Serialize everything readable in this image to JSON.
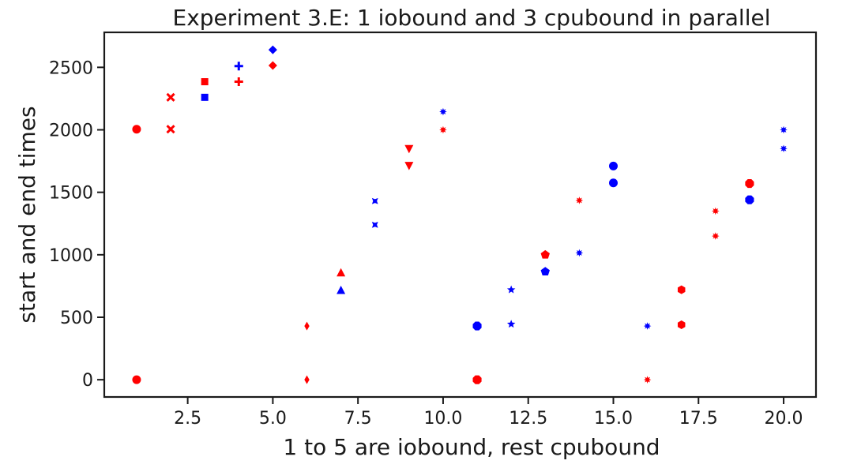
{
  "chart_data": {
    "type": "scatter",
    "title": "Experiment 3.E: 1 iobound and 3 cpubound in parallel",
    "xlabel": "1 to 5 are iobound, rest cpubound",
    "ylabel": "start and end times",
    "xlim": [
      0.05,
      20.95
    ],
    "ylim": [
      -138,
      2780
    ],
    "xticks": [
      2.5,
      5.0,
      7.5,
      10.0,
      12.5,
      15.0,
      17.5,
      20.0
    ],
    "xtick_labels": [
      "2.5",
      "5.0",
      "7.5",
      "10.0",
      "12.5",
      "15.0",
      "17.5",
      "20.0"
    ],
    "yticks": [
      0,
      500,
      1000,
      1500,
      2000,
      2500
    ],
    "ytick_labels": [
      "0",
      "500",
      "1000",
      "1500",
      "2000",
      "2500"
    ],
    "grid": false,
    "colors": {
      "red": "#ff0000",
      "blue": "#0000ff",
      "axis": "#1a1a1a"
    },
    "points": [
      {
        "x": 1,
        "y": 2005,
        "color": "red",
        "marker": "circle"
      },
      {
        "x": 1,
        "y": 0,
        "color": "red",
        "marker": "circle"
      },
      {
        "x": 2,
        "y": 2260,
        "color": "red",
        "marker": "x"
      },
      {
        "x": 2,
        "y": 2005,
        "color": "red",
        "marker": "x"
      },
      {
        "x": 3,
        "y": 2385,
        "color": "red",
        "marker": "square"
      },
      {
        "x": 3,
        "y": 2260,
        "color": "blue",
        "marker": "square"
      },
      {
        "x": 4,
        "y": 2510,
        "color": "blue",
        "marker": "plus"
      },
      {
        "x": 4,
        "y": 2385,
        "color": "red",
        "marker": "plus"
      },
      {
        "x": 5,
        "y": 2640,
        "color": "blue",
        "marker": "diamond"
      },
      {
        "x": 5,
        "y": 2515,
        "color": "red",
        "marker": "diamond"
      },
      {
        "x": 6,
        "y": 430,
        "color": "red",
        "marker": "thin-diamond"
      },
      {
        "x": 6,
        "y": 0,
        "color": "red",
        "marker": "thin-diamond"
      },
      {
        "x": 7,
        "y": 855,
        "color": "red",
        "marker": "triangle-up"
      },
      {
        "x": 7,
        "y": 715,
        "color": "blue",
        "marker": "triangle-up"
      },
      {
        "x": 8,
        "y": 1430,
        "color": "blue",
        "marker": "x-filled"
      },
      {
        "x": 8,
        "y": 1240,
        "color": "blue",
        "marker": "x-filled"
      },
      {
        "x": 9,
        "y": 1850,
        "color": "red",
        "marker": "triangle-down"
      },
      {
        "x": 9,
        "y": 1715,
        "color": "red",
        "marker": "triangle-down"
      },
      {
        "x": 10,
        "y": 2145,
        "color": "blue",
        "marker": "star"
      },
      {
        "x": 10,
        "y": 2000,
        "color": "red",
        "marker": "star"
      },
      {
        "x": 11,
        "y": 430,
        "color": "blue",
        "marker": "octagon"
      },
      {
        "x": 11,
        "y": 0,
        "color": "red",
        "marker": "octagon"
      },
      {
        "x": 12,
        "y": 720,
        "color": "blue",
        "marker": "star5"
      },
      {
        "x": 12,
        "y": 445,
        "color": "blue",
        "marker": "star5"
      },
      {
        "x": 13,
        "y": 1000,
        "color": "red",
        "marker": "pentagon"
      },
      {
        "x": 13,
        "y": 865,
        "color": "blue",
        "marker": "pentagon"
      },
      {
        "x": 14,
        "y": 1435,
        "color": "red",
        "marker": "star"
      },
      {
        "x": 14,
        "y": 1015,
        "color": "blue",
        "marker": "star"
      },
      {
        "x": 15,
        "y": 1710,
        "color": "blue",
        "marker": "circle"
      },
      {
        "x": 15,
        "y": 1575,
        "color": "blue",
        "marker": "circle"
      },
      {
        "x": 16,
        "y": 430,
        "color": "blue",
        "marker": "star"
      },
      {
        "x": 16,
        "y": 0,
        "color": "red",
        "marker": "star"
      },
      {
        "x": 17,
        "y": 720,
        "color": "red",
        "marker": "hexagon"
      },
      {
        "x": 17,
        "y": 440,
        "color": "red",
        "marker": "hexagon"
      },
      {
        "x": 18,
        "y": 1350,
        "color": "red",
        "marker": "star"
      },
      {
        "x": 18,
        "y": 1150,
        "color": "red",
        "marker": "star"
      },
      {
        "x": 19,
        "y": 1570,
        "color": "red",
        "marker": "octagon"
      },
      {
        "x": 19,
        "y": 1440,
        "color": "blue",
        "marker": "octagon"
      },
      {
        "x": 20,
        "y": 2000,
        "color": "blue",
        "marker": "star"
      },
      {
        "x": 20,
        "y": 1850,
        "color": "blue",
        "marker": "star"
      }
    ]
  }
}
